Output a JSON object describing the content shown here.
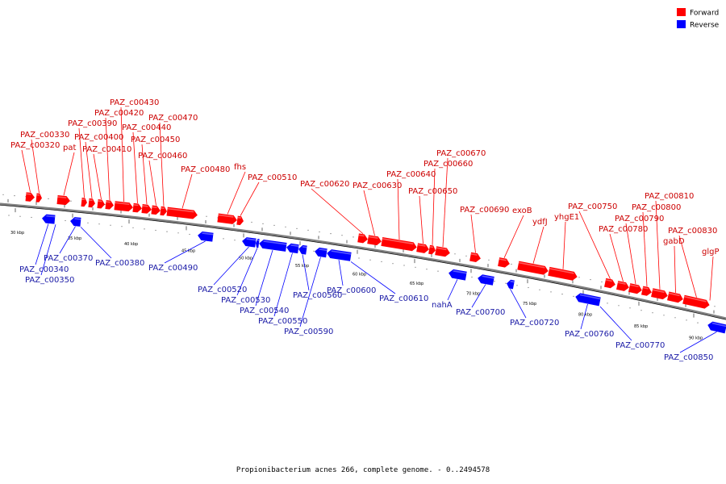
{
  "caption": "Propionibacterium acnes 266, complete genome. - 0..2494578",
  "colors": {
    "forward": "#ff0000",
    "reverse": "#0000ff",
    "label_forward": "#cc0000",
    "label_reverse": "#1a1aa6",
    "axis": "#808080"
  },
  "legend": [
    {
      "label": "Forward",
      "color": "#ff0000"
    },
    {
      "label": "Reverse",
      "color": "#0000ff"
    }
  ],
  "ticks": [
    "30 kbp",
    "35 kbp",
    "40 kbp",
    "45 kbp",
    "50 kbp",
    "55 kbp",
    "60 kbp",
    "65 kbp",
    "70 kbp",
    "75 kbp",
    "80 kbp",
    "85 kbp",
    "90 kbp"
  ],
  "forward_genes": [
    "PAZ_c00320",
    "PAZ_c00330",
    "pat",
    "PAZ_c00390",
    "PAZ_c00400",
    "PAZ_c00410",
    "PAZ_c00420",
    "PAZ_c00430",
    "PAZ_c00440",
    "PAZ_c00450",
    "PAZ_c00460",
    "PAZ_c00470",
    "PAZ_c00480",
    "fhs",
    "PAZ_c00510",
    "PAZ_c00620",
    "PAZ_c00630",
    "PAZ_c00640",
    "PAZ_c00650",
    "PAZ_c00660",
    "PAZ_c00670",
    "PAZ_c00690",
    "exoB",
    "ydfJ",
    "yhgE1",
    "PAZ_c00750",
    "PAZ_c00780",
    "PAZ_c00790",
    "PAZ_c00800",
    "PAZ_c00810",
    "gabD",
    "PAZ_c00830",
    "glgP"
  ],
  "reverse_genes": [
    "PAZ_c00340",
    "PAZ_c00350",
    "PAZ_c00370",
    "PAZ_c00380",
    "PAZ_c00490",
    "PAZ_c00520",
    "PAZ_c00530",
    "PAZ_c00540",
    "PAZ_c00550",
    "PAZ_c00560",
    "PAZ_c00590",
    "PAZ_c00600",
    "PAZ_c00610",
    "nahA",
    "PAZ_c00700",
    "PAZ_c00720",
    "PAZ_c00760",
    "PAZ_c00770",
    "PAZ_c00850"
  ]
}
